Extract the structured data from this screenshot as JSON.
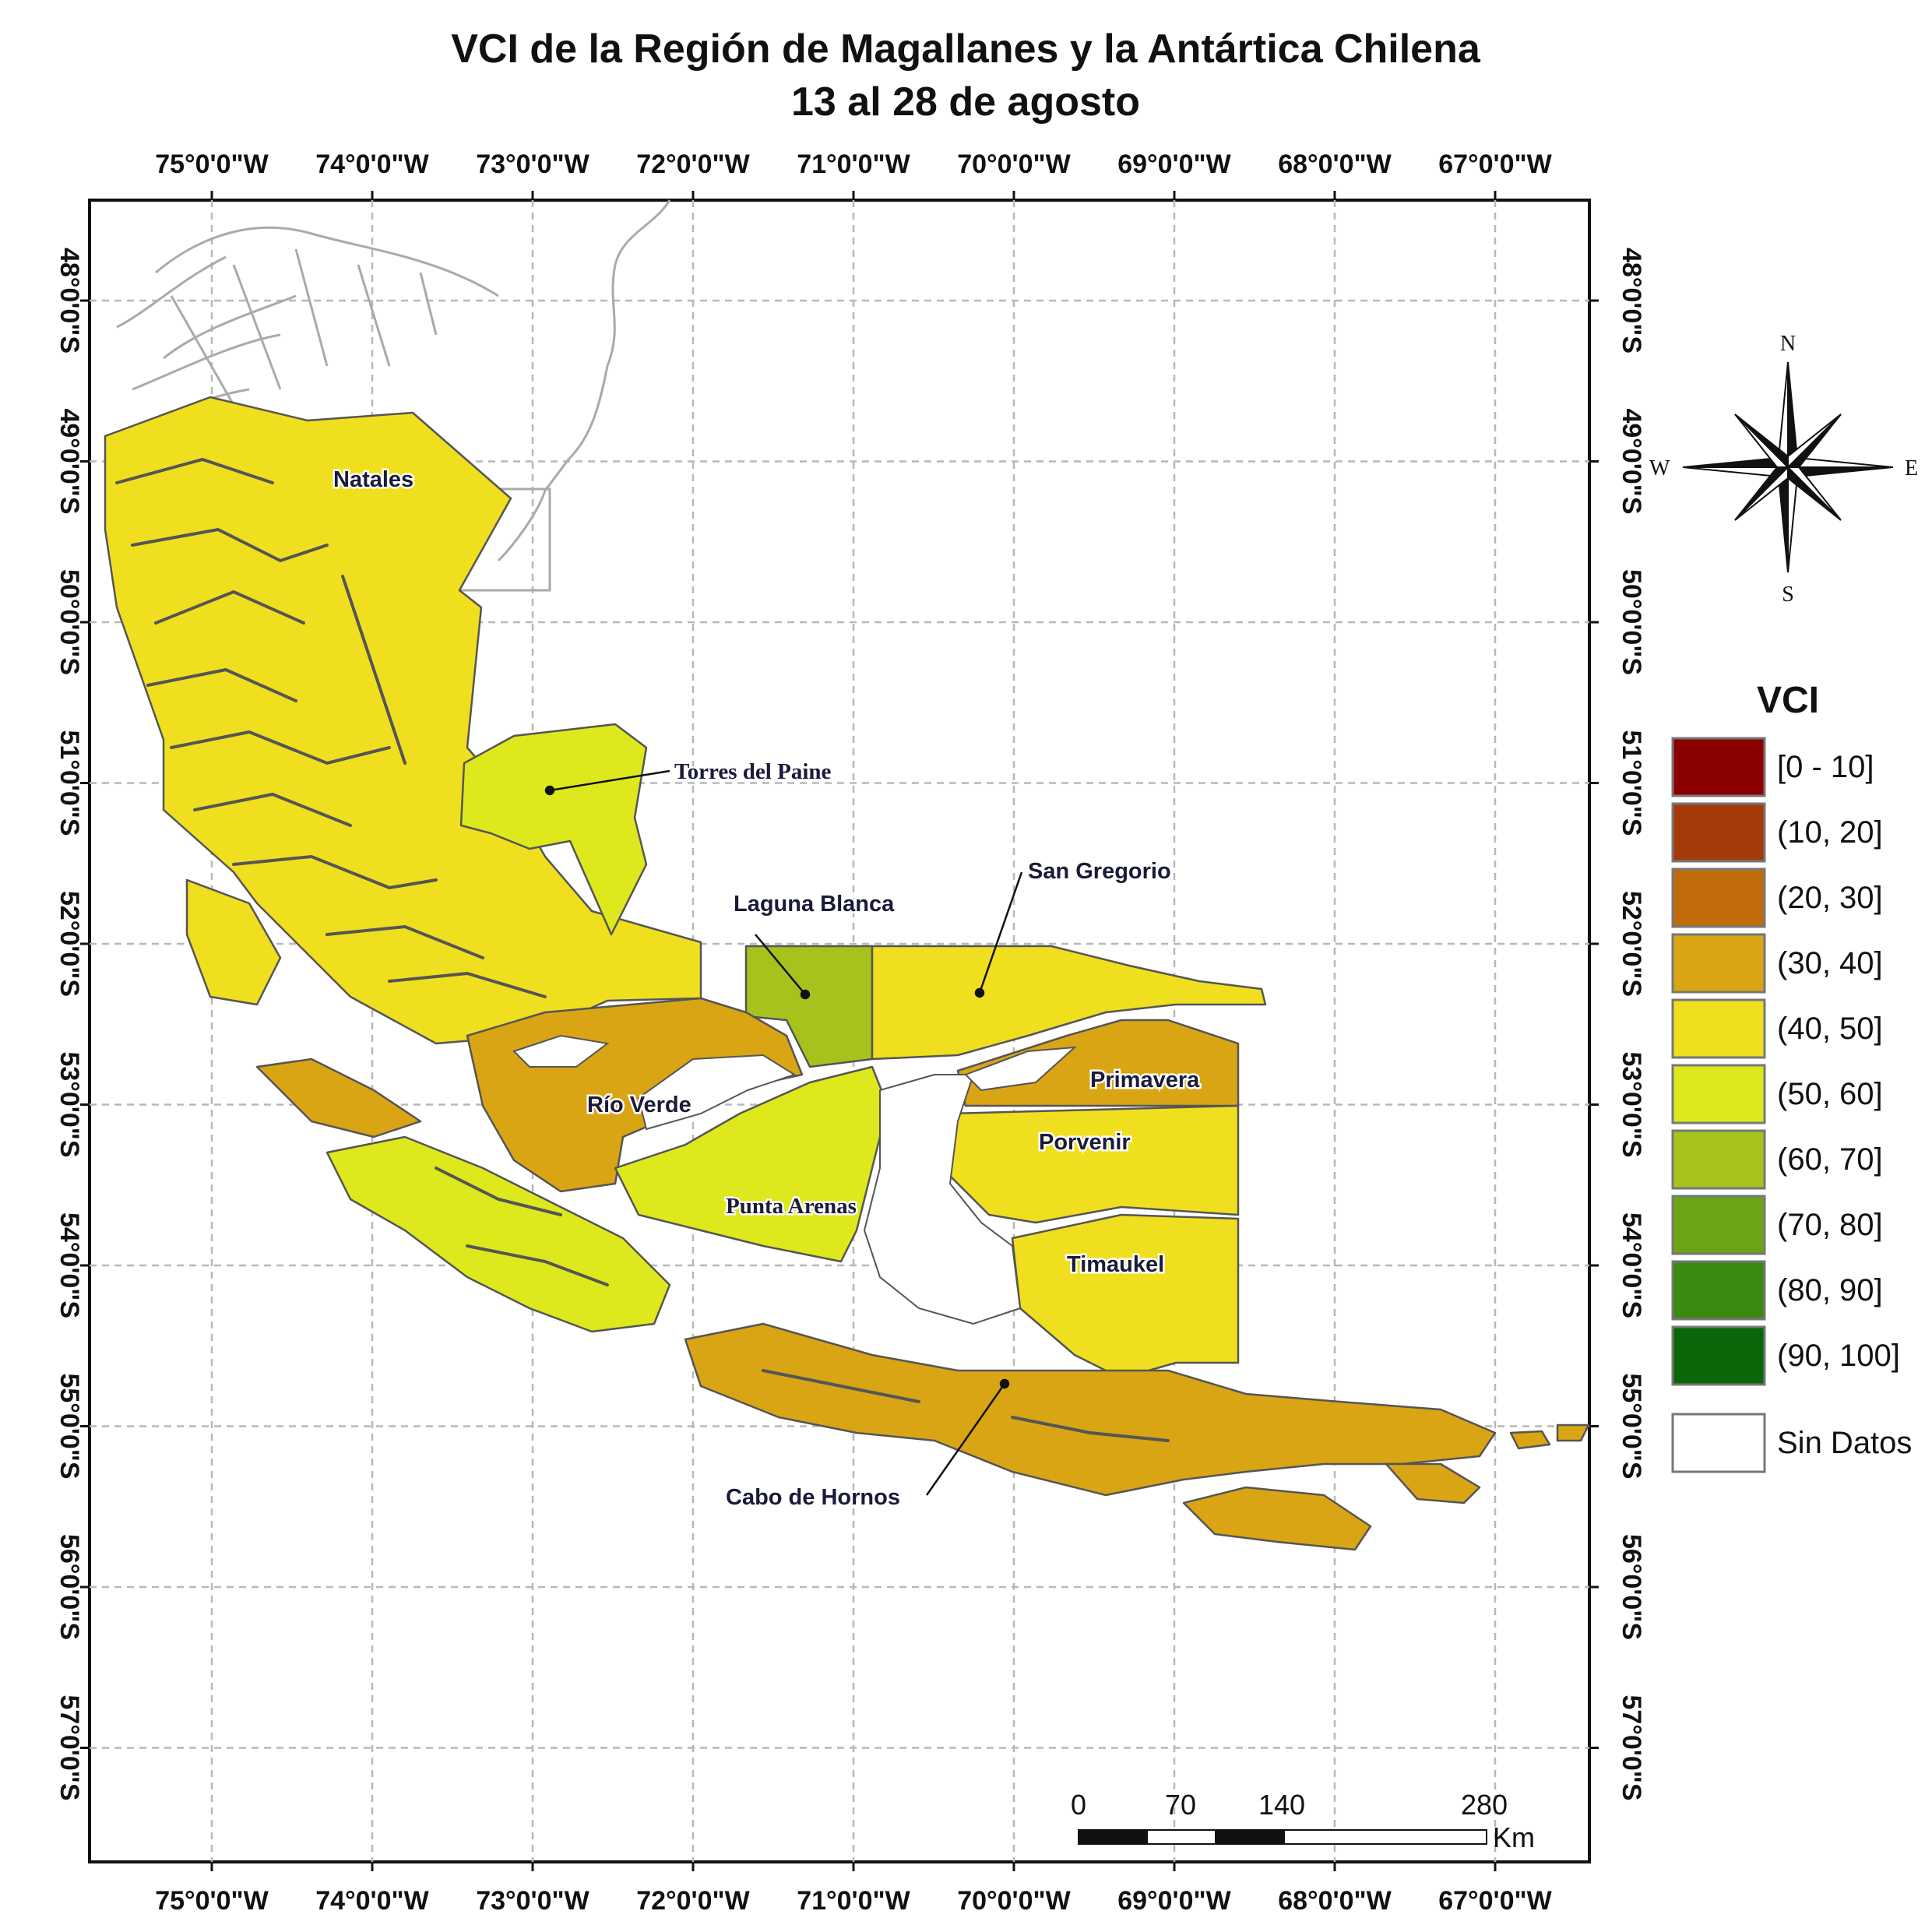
{
  "title": {
    "line1": "VCI de la Región de Magallanes y la Antártica Chilena",
    "line2": "13 al 28 de agosto"
  },
  "axes": {
    "longitude_labels": [
      "75°0'0\"W",
      "74°0'0\"W",
      "73°0'0\"W",
      "72°0'0\"W",
      "71°0'0\"W",
      "70°0'0\"W",
      "69°0'0\"W",
      "68°0'0\"W",
      "67°0'0\"W"
    ],
    "latitude_labels": [
      "48°0'0\"S",
      "49°0'0\"S",
      "50°0'0\"S",
      "51°0'0\"S",
      "52°0'0\"S",
      "53°0'0\"S",
      "54°0'0\"S",
      "55°0'0\"S",
      "56°0'0\"S",
      "57°0'0\"S"
    ]
  },
  "places": {
    "natales": "Natales",
    "torres": "Torres del Paine",
    "laguna": "Laguna Blanca",
    "gregorio": "San Gregorio",
    "primavera": "Primavera",
    "rioverde": "Río Verde",
    "porvenir": "Porvenir",
    "puntaarenas": "Punta Arenas",
    "timaukel": "Timaukel",
    "cabo": "Cabo de Hornos"
  },
  "compass": {
    "n": "N",
    "s": "S",
    "e": "E",
    "w": "W"
  },
  "legend": {
    "title": "VCI",
    "classes": [
      {
        "label": "[0 - 10]",
        "color": "#8b0000"
      },
      {
        "label": "(10, 20]",
        "color": "#a53a0a"
      },
      {
        "label": "(20, 30]",
        "color": "#c06c0c"
      },
      {
        "label": "(30, 40]",
        "color": "#d9a514"
      },
      {
        "label": "(40, 50]",
        "color": "#f0df1e"
      },
      {
        "label": "(50, 60]",
        "color": "#dde91c"
      },
      {
        "label": "(60, 70]",
        "color": "#a5c31c"
      },
      {
        "label": "(70, 80]",
        "color": "#6aa516"
      },
      {
        "label": "(80, 90]",
        "color": "#3a8a12"
      },
      {
        "label": "(90, 100]",
        "color": "#0a6608"
      }
    ],
    "nodata": {
      "label": "Sin Datos",
      "color": "#ffffff"
    }
  },
  "scalebar": {
    "labels": [
      "0",
      "70",
      "140",
      "280"
    ],
    "unit": "Km"
  },
  "comunas": {
    "natales": {
      "vci_class": "(40, 50]"
    },
    "torres": {
      "vci_class": "(50, 60]"
    },
    "laguna": {
      "vci_class": "(60, 70]"
    },
    "gregorio": {
      "vci_class": "(40, 50]"
    },
    "primavera": {
      "vci_class": "(30, 40]"
    },
    "rioverde": {
      "vci_class": "(30, 40]"
    },
    "porvenir": {
      "vci_class": "(40, 50]"
    },
    "puntaarenas": {
      "vci_class": "(50, 60]"
    },
    "timaukel": {
      "vci_class": "(40, 50]"
    },
    "cabo": {
      "vci_class": "(30, 40]"
    }
  }
}
